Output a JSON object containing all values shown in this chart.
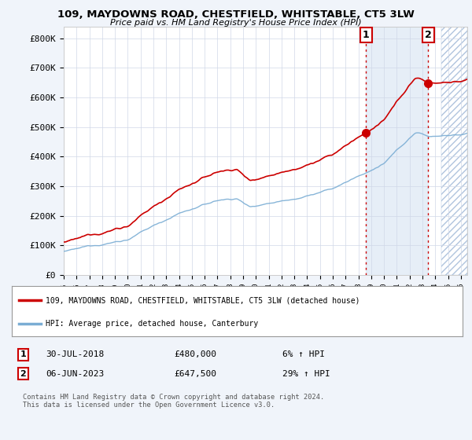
{
  "title": "109, MAYDOWNS ROAD, CHESTFIELD, WHITSTABLE, CT5 3LW",
  "subtitle": "Price paid vs. HM Land Registry's House Price Index (HPI)",
  "background_color": "#f0f4fa",
  "plot_bg_color": "#ffffff",
  "ylim": [
    0,
    840000
  ],
  "yticks": [
    0,
    100000,
    200000,
    300000,
    400000,
    500000,
    600000,
    700000,
    800000
  ],
  "ytick_labels": [
    "£0",
    "£100K",
    "£200K",
    "£300K",
    "£400K",
    "£500K",
    "£600K",
    "£700K",
    "£800K"
  ],
  "sale1_date": "30-JUL-2018",
  "sale1_price": 480000,
  "sale1_label": "6% ↑ HPI",
  "sale1_x": 2018.58,
  "sale2_date": "06-JUN-2023",
  "sale2_price": 647500,
  "sale2_label": "29% ↑ HPI",
  "sale2_x": 2023.43,
  "line1_color": "#cc0000",
  "line2_color": "#7aadd4",
  "legend_line1": "109, MAYDOWNS ROAD, CHESTFIELD, WHITSTABLE, CT5 3LW (detached house)",
  "legend_line2": "HPI: Average price, detached house, Canterbury",
  "footnote": "Contains HM Land Registry data © Crown copyright and database right 2024.\nThis data is licensed under the Open Government Licence v3.0.",
  "vline_color": "#cc0000",
  "shade_color": "#dce8f5",
  "xmin": 1995,
  "xmax": 2026.5,
  "hatch_start": 2024.5
}
